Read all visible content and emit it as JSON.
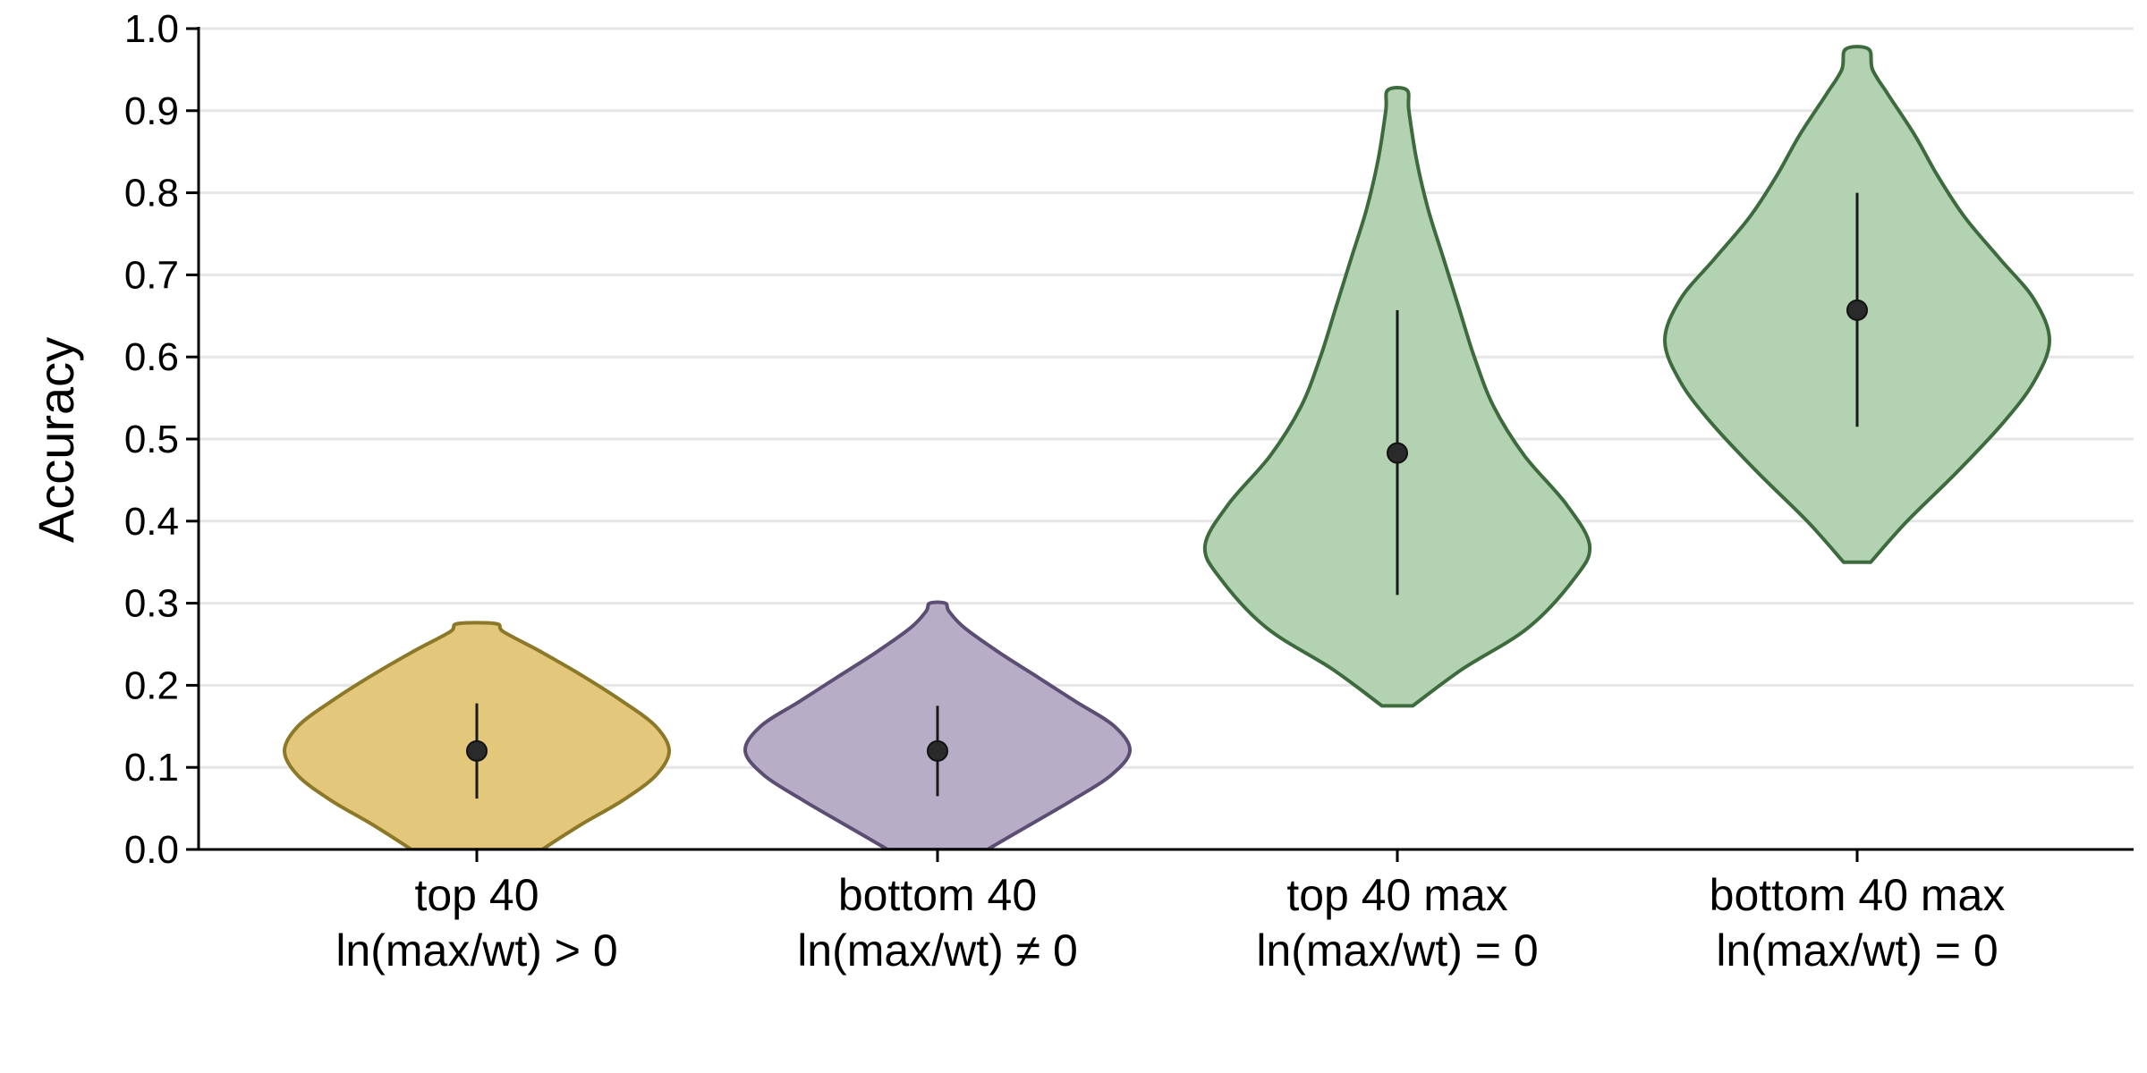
{
  "chart_data": {
    "type": "violin",
    "title": "",
    "xlabel": "",
    "ylabel": "Accuracy",
    "ylim": [
      0.0,
      1.0
    ],
    "yticks": [
      "0.0",
      "0.1",
      "0.2",
      "0.3",
      "0.4",
      "0.5",
      "0.6",
      "0.7",
      "0.8",
      "0.9",
      "1.0"
    ],
    "grid": "horizontal",
    "legend": "none",
    "categories": [
      "top 40\nln(max/wt) > 0",
      "bottom 40\nln(max/wt) ≠ 0",
      "top 40 max\nln(max/wt) = 0",
      "bottom 40 max\nln(max/wt) = 0"
    ],
    "series": [
      {
        "category_lines": [
          "top 40",
          "ln(max/wt) > 0"
        ],
        "fill": "#E3C77B",
        "stroke": "#8B7828",
        "min": 0.0,
        "max": 0.275,
        "mean": 0.12,
        "err_low": 0.062,
        "err_high": 0.178,
        "density": [
          [
            0.0,
            0.34
          ],
          [
            0.03,
            0.54
          ],
          [
            0.06,
            0.76
          ],
          [
            0.09,
            0.93
          ],
          [
            0.12,
            1.0
          ],
          [
            0.15,
            0.93
          ],
          [
            0.18,
            0.76
          ],
          [
            0.21,
            0.56
          ],
          [
            0.24,
            0.34
          ],
          [
            0.265,
            0.14
          ],
          [
            0.275,
            0.1
          ]
        ]
      },
      {
        "category_lines": [
          "bottom 40",
          "ln(max/wt) ≠ 0"
        ],
        "fill": "#B8ADC6",
        "stroke": "#5C4E73",
        "min": 0.0,
        "max": 0.3,
        "mean": 0.12,
        "err_low": 0.065,
        "err_high": 0.175,
        "density": [
          [
            0.0,
            0.26
          ],
          [
            0.03,
            0.48
          ],
          [
            0.06,
            0.7
          ],
          [
            0.09,
            0.9
          ],
          [
            0.12,
            1.0
          ],
          [
            0.15,
            0.92
          ],
          [
            0.18,
            0.72
          ],
          [
            0.21,
            0.52
          ],
          [
            0.24,
            0.32
          ],
          [
            0.27,
            0.14
          ],
          [
            0.29,
            0.06
          ],
          [
            0.3,
            0.04
          ]
        ]
      },
      {
        "category_lines": [
          "top 40 max",
          "ln(max/wt) = 0"
        ],
        "fill": "#B2D2B2",
        "stroke": "#3E6B3E",
        "min": 0.175,
        "max": 0.925,
        "mean": 0.483,
        "err_low": 0.31,
        "err_high": 0.657,
        "density": [
          [
            0.175,
            0.08
          ],
          [
            0.22,
            0.34
          ],
          [
            0.27,
            0.68
          ],
          [
            0.33,
            0.92
          ],
          [
            0.37,
            1.0
          ],
          [
            0.42,
            0.88
          ],
          [
            0.48,
            0.66
          ],
          [
            0.54,
            0.5
          ],
          [
            0.6,
            0.4
          ],
          [
            0.66,
            0.32
          ],
          [
            0.72,
            0.24
          ],
          [
            0.78,
            0.16
          ],
          [
            0.84,
            0.1
          ],
          [
            0.9,
            0.06
          ],
          [
            0.925,
            0.05
          ]
        ]
      },
      {
        "category_lines": [
          "bottom 40 max",
          "ln(max/wt) = 0"
        ],
        "fill": "#B2D2B2",
        "stroke": "#3E6B3E",
        "min": 0.35,
        "max": 0.975,
        "mean": 0.657,
        "err_low": 0.515,
        "err_high": 0.8,
        "density": [
          [
            0.35,
            0.07
          ],
          [
            0.4,
            0.26
          ],
          [
            0.46,
            0.52
          ],
          [
            0.52,
            0.76
          ],
          [
            0.57,
            0.92
          ],
          [
            0.62,
            1.0
          ],
          [
            0.67,
            0.92
          ],
          [
            0.72,
            0.74
          ],
          [
            0.77,
            0.56
          ],
          [
            0.82,
            0.42
          ],
          [
            0.87,
            0.3
          ],
          [
            0.92,
            0.16
          ],
          [
            0.95,
            0.08
          ],
          [
            0.975,
            0.06
          ]
        ]
      }
    ]
  }
}
